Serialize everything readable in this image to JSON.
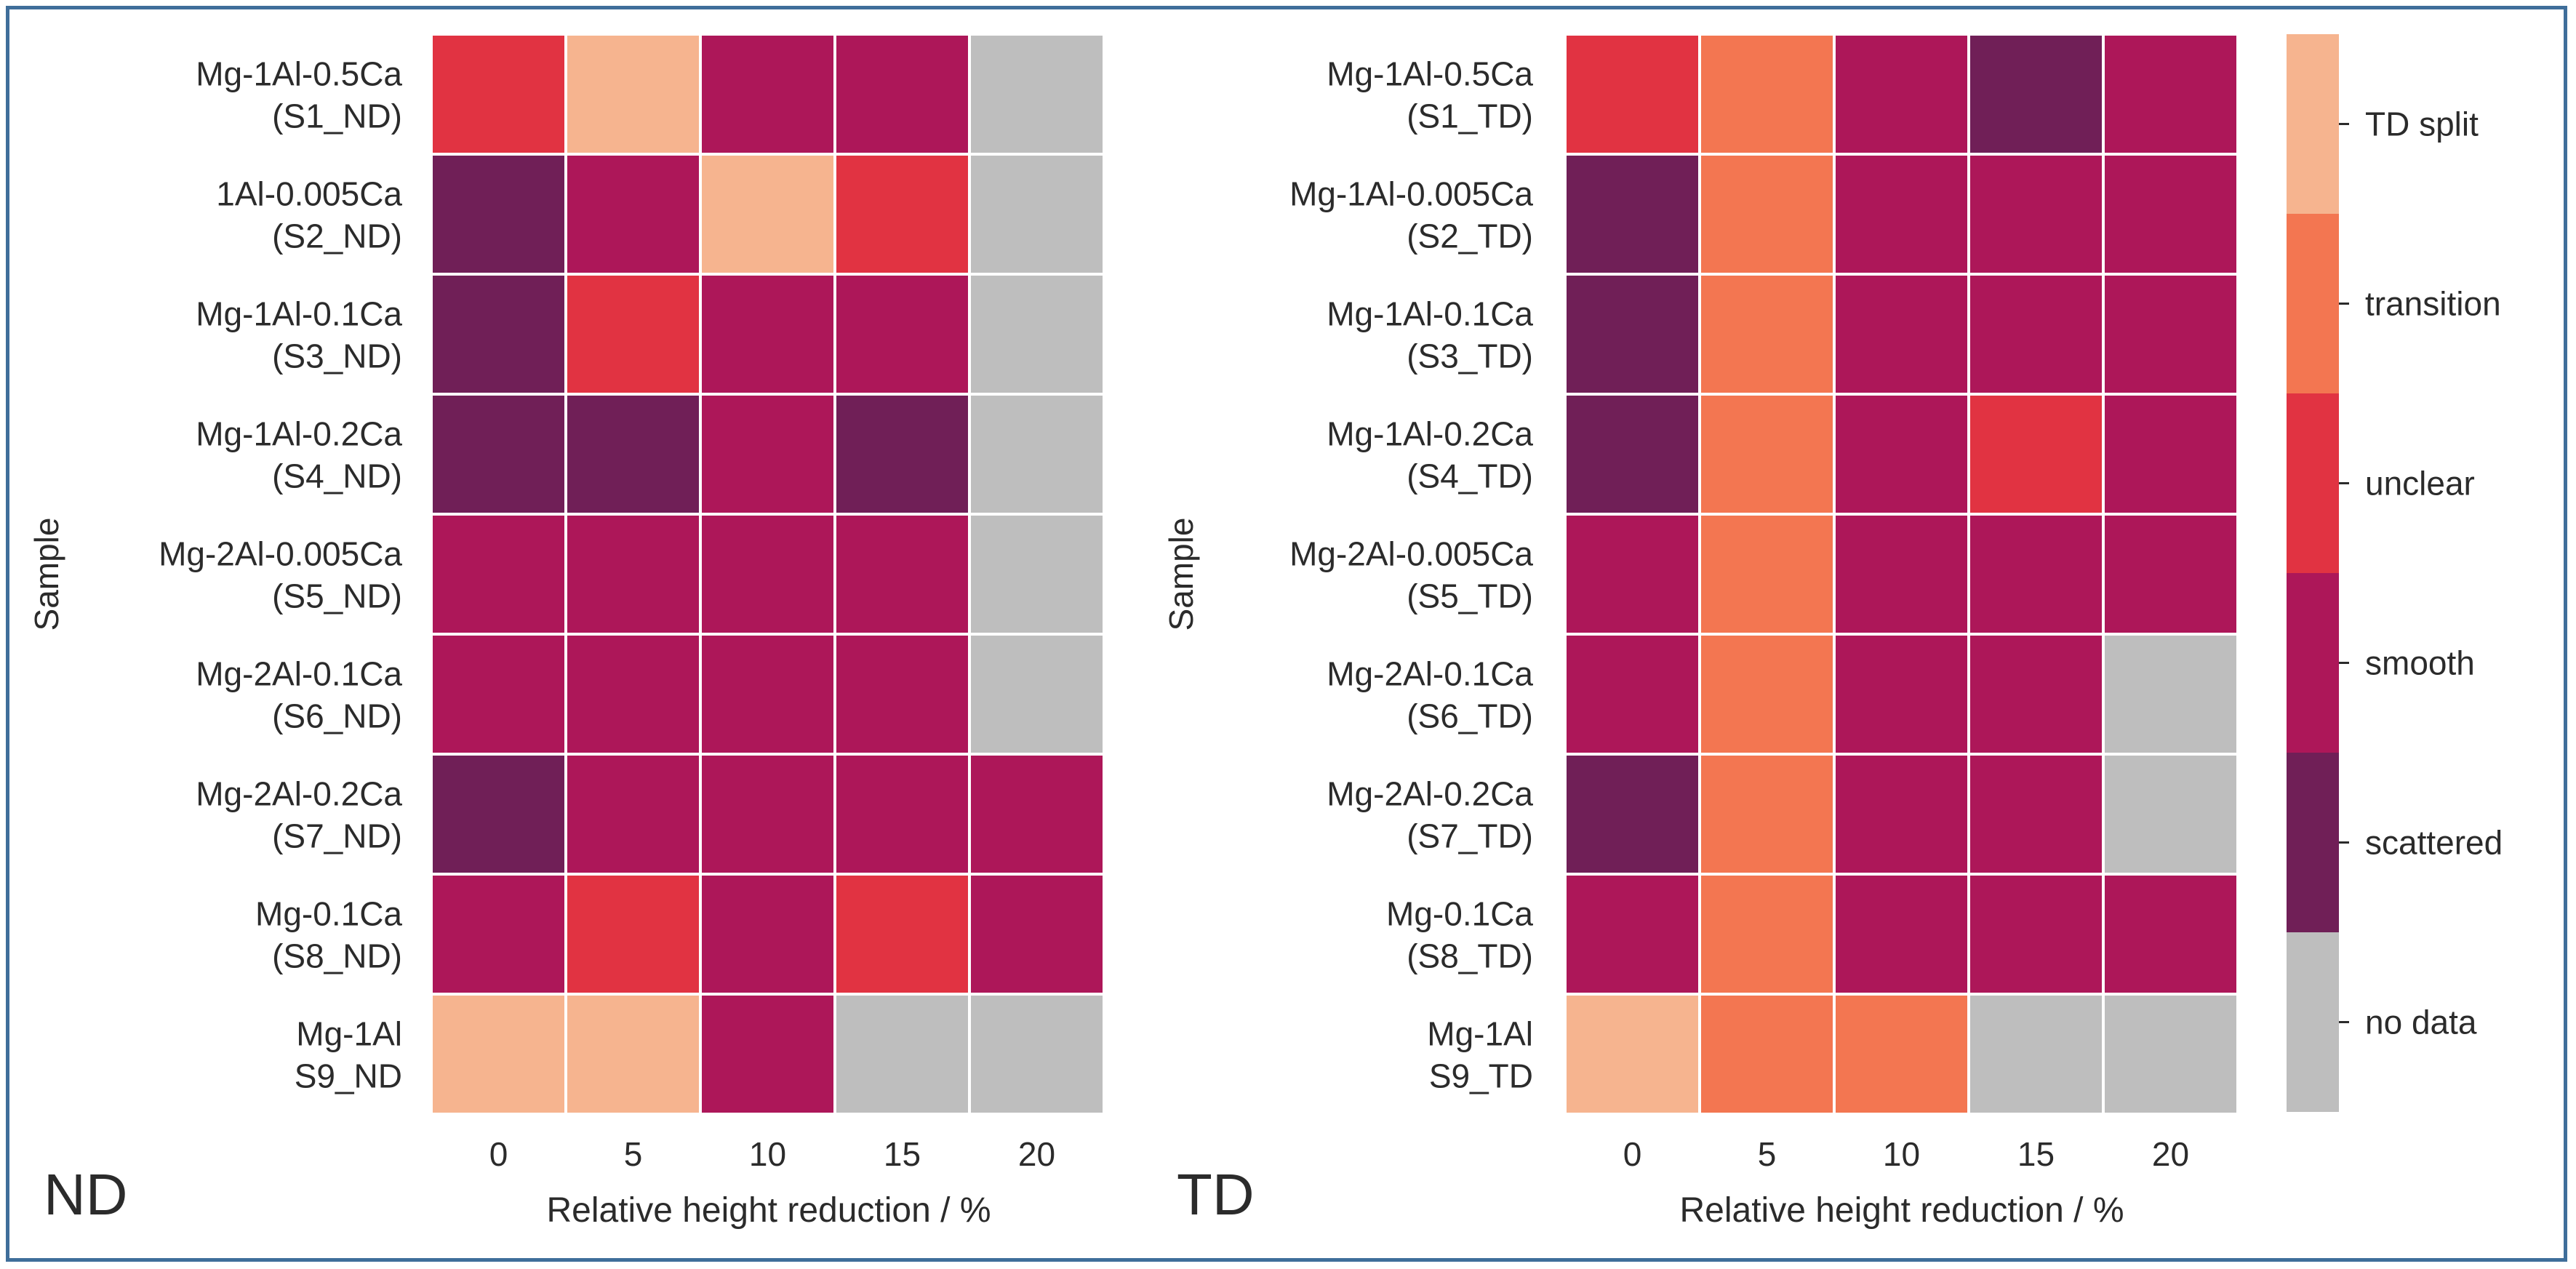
{
  "chart_data": [
    {
      "type": "heatmap",
      "panel_label": "ND",
      "xlabel": "Relative height reduction / %",
      "ylabel": "Sample",
      "x_ticks": [
        "0",
        "5",
        "10",
        "15",
        "20"
      ],
      "rows": [
        {
          "line1": "Mg-1Al-0.5Ca",
          "line2": "(S1_ND)",
          "values": [
            "unclear",
            "TD split",
            "smooth",
            "smooth",
            "no data"
          ]
        },
        {
          "line1": "1Al-0.005Ca",
          "line2": "(S2_ND)",
          "values": [
            "scattered",
            "smooth",
            "TD split",
            "unclear",
            "no data"
          ]
        },
        {
          "line1": "Mg-1Al-0.1Ca",
          "line2": "(S3_ND)",
          "values": [
            "scattered",
            "unclear",
            "smooth",
            "smooth",
            "no data"
          ]
        },
        {
          "line1": "Mg-1Al-0.2Ca",
          "line2": "(S4_ND)",
          "values": [
            "scattered",
            "scattered",
            "smooth",
            "scattered",
            "no data"
          ]
        },
        {
          "line1": "Mg-2Al-0.005Ca",
          "line2": "(S5_ND)",
          "values": [
            "smooth",
            "smooth",
            "smooth",
            "smooth",
            "no data"
          ]
        },
        {
          "line1": "Mg-2Al-0.1Ca",
          "line2": "(S6_ND)",
          "values": [
            "smooth",
            "smooth",
            "smooth",
            "smooth",
            "no data"
          ]
        },
        {
          "line1": "Mg-2Al-0.2Ca",
          "line2": "(S7_ND)",
          "values": [
            "scattered",
            "smooth",
            "smooth",
            "smooth",
            "smooth"
          ]
        },
        {
          "line1": "Mg-0.1Ca",
          "line2": "(S8_ND)",
          "values": [
            "smooth",
            "unclear",
            "smooth",
            "unclear",
            "smooth"
          ]
        },
        {
          "line1": "Mg-1Al",
          "line2": "S9_ND",
          "values": [
            "TD split",
            "TD split",
            "smooth",
            "no data",
            "no data"
          ]
        }
      ]
    },
    {
      "type": "heatmap",
      "panel_label": "TD",
      "xlabel": "Relative height reduction / %",
      "ylabel": "Sample",
      "x_ticks": [
        "0",
        "5",
        "10",
        "15",
        "20"
      ],
      "rows": [
        {
          "line1": "Mg-1Al-0.5Ca",
          "line2": "(S1_TD)",
          "values": [
            "unclear",
            "transition",
            "smooth",
            "scattered",
            "smooth"
          ]
        },
        {
          "line1": "Mg-1Al-0.005Ca",
          "line2": "(S2_TD)",
          "values": [
            "scattered",
            "transition",
            "smooth",
            "smooth",
            "smooth"
          ]
        },
        {
          "line1": "Mg-1Al-0.1Ca",
          "line2": "(S3_TD)",
          "values": [
            "scattered",
            "transition",
            "smooth",
            "smooth",
            "smooth"
          ]
        },
        {
          "line1": "Mg-1Al-0.2Ca",
          "line2": "(S4_TD)",
          "values": [
            "scattered",
            "transition",
            "smooth",
            "unclear",
            "smooth"
          ]
        },
        {
          "line1": "Mg-2Al-0.005Ca",
          "line2": "(S5_TD)",
          "values": [
            "smooth",
            "transition",
            "smooth",
            "smooth",
            "smooth"
          ]
        },
        {
          "line1": "Mg-2Al-0.1Ca",
          "line2": "(S6_TD)",
          "values": [
            "smooth",
            "transition",
            "smooth",
            "smooth",
            "no data"
          ]
        },
        {
          "line1": "Mg-2Al-0.2Ca",
          "line2": "(S7_TD)",
          "values": [
            "scattered",
            "transition",
            "smooth",
            "smooth",
            "no data"
          ]
        },
        {
          "line1": "Mg-0.1Ca",
          "line2": "(S8_TD)",
          "values": [
            "smooth",
            "transition",
            "smooth",
            "smooth",
            "smooth"
          ]
        },
        {
          "line1": "Mg-1Al",
          "line2": "S9_TD",
          "values": [
            "TD split",
            "transition",
            "transition",
            "no data",
            "no data"
          ]
        }
      ]
    }
  ],
  "legend": {
    "categories": [
      {
        "label": "TD split",
        "color": "#f6b48f"
      },
      {
        "label": "transition",
        "color": "#f37651"
      },
      {
        "label": "unclear",
        "color": "#e13342"
      },
      {
        "label": "smooth",
        "color": "#ad1759"
      },
      {
        "label": "scattered",
        "color": "#701f57"
      },
      {
        "label": "no data",
        "color": "#bebebe"
      }
    ]
  }
}
